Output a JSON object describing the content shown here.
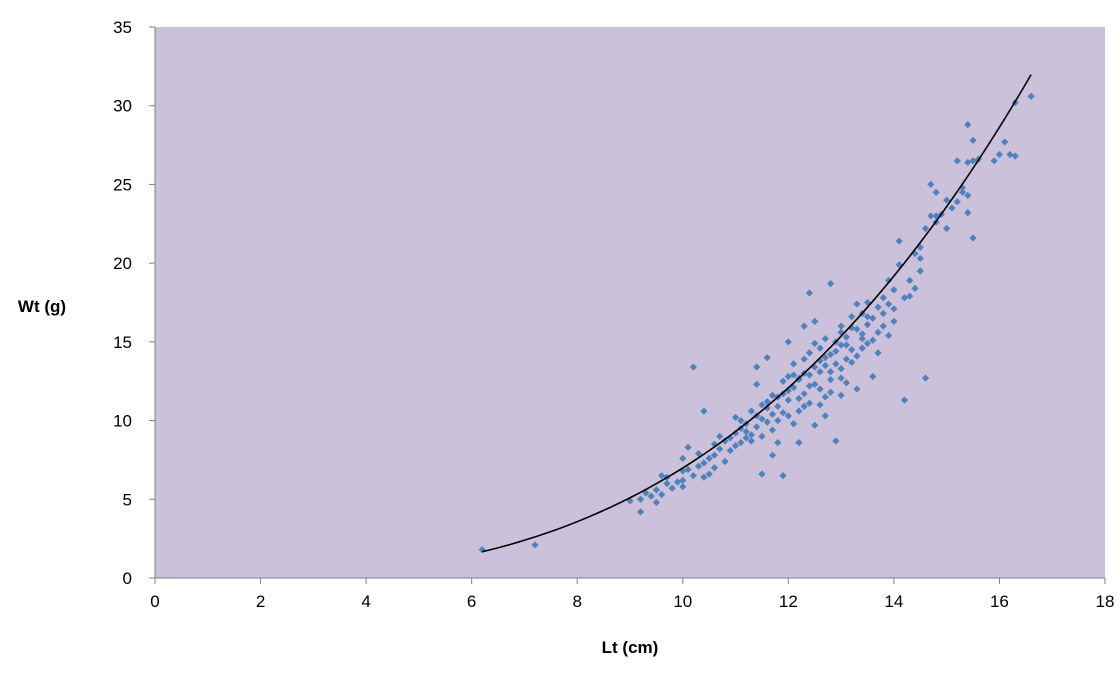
{
  "chart_data": {
    "type": "scatter",
    "title": "",
    "xlabel": "Lt (cm)",
    "ylabel": "Wt (g)",
    "xlim": [
      0,
      18
    ],
    "ylim": [
      0,
      35
    ],
    "x_ticks": [
      0,
      2,
      4,
      6,
      8,
      10,
      12,
      14,
      16,
      18
    ],
    "y_ticks": [
      0,
      5,
      10,
      15,
      20,
      25,
      30,
      35
    ],
    "x_tick_labels": [
      "0",
      "2",
      "4",
      "6",
      "8",
      "10",
      "12",
      "14",
      "16",
      "18"
    ],
    "y_tick_labels": [
      "0",
      "5",
      "10",
      "15",
      "20",
      "25",
      "30",
      "35"
    ],
    "grid": false,
    "legend": "none",
    "colors": {
      "plot_background": "#ccc1da",
      "marker": "#4f81bd",
      "trendline": "#000000",
      "axis": "#808080"
    },
    "trendline": {
      "type": "power",
      "a": 0.00699,
      "b": 3.0,
      "x_range": [
        6.2,
        16.6
      ]
    },
    "series": [
      {
        "points": [
          [
            6.2,
            1.8
          ],
          [
            7.2,
            2.1
          ],
          [
            9.2,
            4.2
          ],
          [
            9.2,
            5.0
          ],
          [
            9.4,
            5.2
          ],
          [
            9.5,
            4.8
          ],
          [
            9.5,
            5.6
          ],
          [
            9.6,
            5.3
          ],
          [
            9.6,
            6.5
          ],
          [
            9.7,
            6.4
          ],
          [
            9.8,
            5.7
          ],
          [
            9.9,
            6.1
          ],
          [
            10.0,
            5.8
          ],
          [
            10.0,
            6.2
          ],
          [
            10.0,
            6.8
          ],
          [
            10.0,
            7.6
          ],
          [
            10.1,
            8.3
          ],
          [
            10.2,
            6.5
          ],
          [
            10.2,
            13.4
          ],
          [
            10.3,
            7.1
          ],
          [
            10.4,
            6.4
          ],
          [
            10.4,
            7.3
          ],
          [
            10.4,
            10.6
          ],
          [
            10.5,
            7.6
          ],
          [
            10.5,
            6.6
          ],
          [
            10.6,
            7.8
          ],
          [
            10.6,
            8.5
          ],
          [
            10.7,
            9.0
          ],
          [
            10.7,
            8.2
          ],
          [
            10.8,
            7.4
          ],
          [
            10.8,
            8.7
          ],
          [
            10.9,
            8.9
          ],
          [
            11.0,
            8.4
          ],
          [
            11.0,
            9.2
          ],
          [
            11.0,
            10.2
          ],
          [
            11.1,
            8.6
          ],
          [
            11.1,
            9.5
          ],
          [
            11.2,
            9.8
          ],
          [
            11.2,
            8.9
          ],
          [
            11.3,
            9.1
          ],
          [
            11.3,
            10.6
          ],
          [
            11.3,
            8.7
          ],
          [
            11.4,
            9.6
          ],
          [
            11.4,
            12.3
          ],
          [
            11.4,
            13.4
          ],
          [
            11.5,
            10.1
          ],
          [
            11.5,
            9.0
          ],
          [
            11.5,
            6.6
          ],
          [
            11.6,
            10.8
          ],
          [
            11.6,
            11.2
          ],
          [
            11.6,
            14.0
          ],
          [
            11.7,
            9.4
          ],
          [
            11.7,
            7.8
          ],
          [
            11.7,
            10.4
          ],
          [
            11.8,
            11.5
          ],
          [
            11.8,
            10.0
          ],
          [
            11.8,
            8.6
          ],
          [
            11.9,
            11.7
          ],
          [
            11.9,
            6.5
          ],
          [
            11.9,
            12.5
          ],
          [
            12.0,
            10.3
          ],
          [
            12.0,
            12.8
          ],
          [
            12.0,
            15.0
          ],
          [
            12.0,
            11.9
          ],
          [
            12.1,
            12.1
          ],
          [
            12.1,
            9.8
          ],
          [
            12.1,
            13.6
          ],
          [
            12.2,
            12.6
          ],
          [
            12.2,
            10.6
          ],
          [
            12.2,
            8.6
          ],
          [
            12.2,
            11.4
          ],
          [
            12.3,
            13.0
          ],
          [
            12.3,
            16.0
          ],
          [
            12.3,
            10.9
          ],
          [
            12.4,
            12.2
          ],
          [
            12.4,
            14.3
          ],
          [
            12.4,
            11.1
          ],
          [
            12.4,
            18.1
          ],
          [
            12.5,
            13.4
          ],
          [
            12.5,
            9.7
          ],
          [
            12.5,
            16.3
          ],
          [
            12.6,
            12.0
          ],
          [
            12.6,
            14.6
          ],
          [
            12.6,
            13.8
          ],
          [
            12.7,
            11.5
          ],
          [
            12.7,
            15.2
          ],
          [
            12.7,
            10.3
          ],
          [
            12.8,
            14.2
          ],
          [
            12.8,
            13.1
          ],
          [
            12.8,
            18.7
          ],
          [
            12.8,
            11.8
          ],
          [
            12.9,
            15.0
          ],
          [
            12.9,
            8.7
          ],
          [
            12.9,
            13.6
          ],
          [
            13.0,
            14.8
          ],
          [
            13.0,
            12.7
          ],
          [
            13.0,
            16.0
          ],
          [
            13.0,
            11.6
          ],
          [
            13.1,
            13.9
          ],
          [
            13.1,
            15.3
          ],
          [
            13.1,
            12.4
          ],
          [
            13.2,
            14.5
          ],
          [
            13.2,
            15.9
          ],
          [
            13.2,
            16.6
          ],
          [
            13.3,
            14.1
          ],
          [
            13.3,
            17.4
          ],
          [
            13.3,
            12.0
          ],
          [
            13.4,
            15.5
          ],
          [
            13.4,
            16.8
          ],
          [
            13.4,
            14.6
          ],
          [
            13.5,
            16.1
          ],
          [
            13.5,
            17.5
          ],
          [
            13.6,
            15.1
          ],
          [
            13.6,
            12.8
          ],
          [
            13.6,
            16.5
          ],
          [
            13.7,
            17.2
          ],
          [
            13.7,
            14.3
          ],
          [
            13.8,
            16.0
          ],
          [
            13.8,
            17.8
          ],
          [
            13.9,
            15.4
          ],
          [
            13.9,
            18.9
          ],
          [
            14.0,
            17.1
          ],
          [
            14.0,
            16.3
          ],
          [
            14.1,
            19.9
          ],
          [
            14.1,
            21.4
          ],
          [
            14.2,
            17.8
          ],
          [
            14.2,
            11.3
          ],
          [
            14.3,
            18.9
          ],
          [
            14.4,
            20.6
          ],
          [
            14.4,
            18.4
          ],
          [
            14.5,
            21.0
          ],
          [
            14.5,
            19.5
          ],
          [
            14.6,
            22.2
          ],
          [
            14.6,
            12.7
          ],
          [
            14.7,
            23.0
          ],
          [
            14.7,
            25.0
          ],
          [
            14.8,
            24.5
          ],
          [
            14.8,
            22.6
          ],
          [
            14.9,
            23.1
          ],
          [
            15.0,
            22.2
          ],
          [
            15.0,
            24.0
          ],
          [
            15.1,
            23.5
          ],
          [
            15.2,
            26.5
          ],
          [
            15.2,
            23.9
          ],
          [
            15.3,
            24.5
          ],
          [
            15.3,
            24.8
          ],
          [
            15.4,
            24.3
          ],
          [
            15.4,
            26.4
          ],
          [
            15.4,
            28.8
          ],
          [
            15.4,
            23.2
          ],
          [
            15.5,
            26.5
          ],
          [
            15.5,
            27.8
          ],
          [
            15.5,
            21.6
          ],
          [
            15.6,
            26.6
          ],
          [
            15.9,
            26.5
          ],
          [
            16.0,
            26.9
          ],
          [
            16.1,
            27.7
          ],
          [
            16.2,
            26.9
          ],
          [
            16.3,
            30.2
          ],
          [
            16.3,
            26.8
          ],
          [
            16.6,
            30.6
          ],
          [
            9.0,
            4.9
          ],
          [
            9.3,
            5.4
          ],
          [
            9.7,
            6.0
          ],
          [
            10.1,
            6.9
          ],
          [
            10.3,
            7.9
          ],
          [
            10.6,
            7.0
          ],
          [
            10.9,
            8.1
          ],
          [
            11.1,
            10.0
          ],
          [
            11.2,
            9.3
          ],
          [
            11.4,
            10.3
          ],
          [
            11.5,
            11.0
          ],
          [
            11.6,
            9.9
          ],
          [
            11.7,
            11.6
          ],
          [
            11.8,
            10.9
          ],
          [
            11.9,
            10.5
          ],
          [
            12.0,
            11.3
          ],
          [
            12.1,
            12.9
          ],
          [
            12.2,
            12.7
          ],
          [
            12.3,
            11.7
          ],
          [
            12.3,
            13.9
          ],
          [
            12.4,
            12.9
          ],
          [
            12.5,
            12.3
          ],
          [
            12.5,
            14.9
          ],
          [
            12.6,
            13.1
          ],
          [
            12.6,
            11.0
          ],
          [
            12.7,
            13.5
          ],
          [
            12.7,
            14.0
          ],
          [
            12.8,
            12.6
          ],
          [
            12.9,
            14.4
          ],
          [
            13.0,
            13.3
          ],
          [
            13.0,
            15.6
          ],
          [
            13.1,
            14.8
          ],
          [
            13.2,
            13.7
          ],
          [
            13.3,
            15.8
          ],
          [
            13.4,
            15.2
          ],
          [
            13.5,
            14.9
          ],
          [
            13.5,
            16.6
          ],
          [
            13.7,
            15.6
          ],
          [
            13.8,
            16.8
          ],
          [
            13.9,
            17.4
          ],
          [
            14.0,
            18.3
          ],
          [
            14.3,
            17.9
          ],
          [
            14.5,
            20.3
          ],
          [
            14.8,
            23.0
          ]
        ]
      }
    ]
  }
}
